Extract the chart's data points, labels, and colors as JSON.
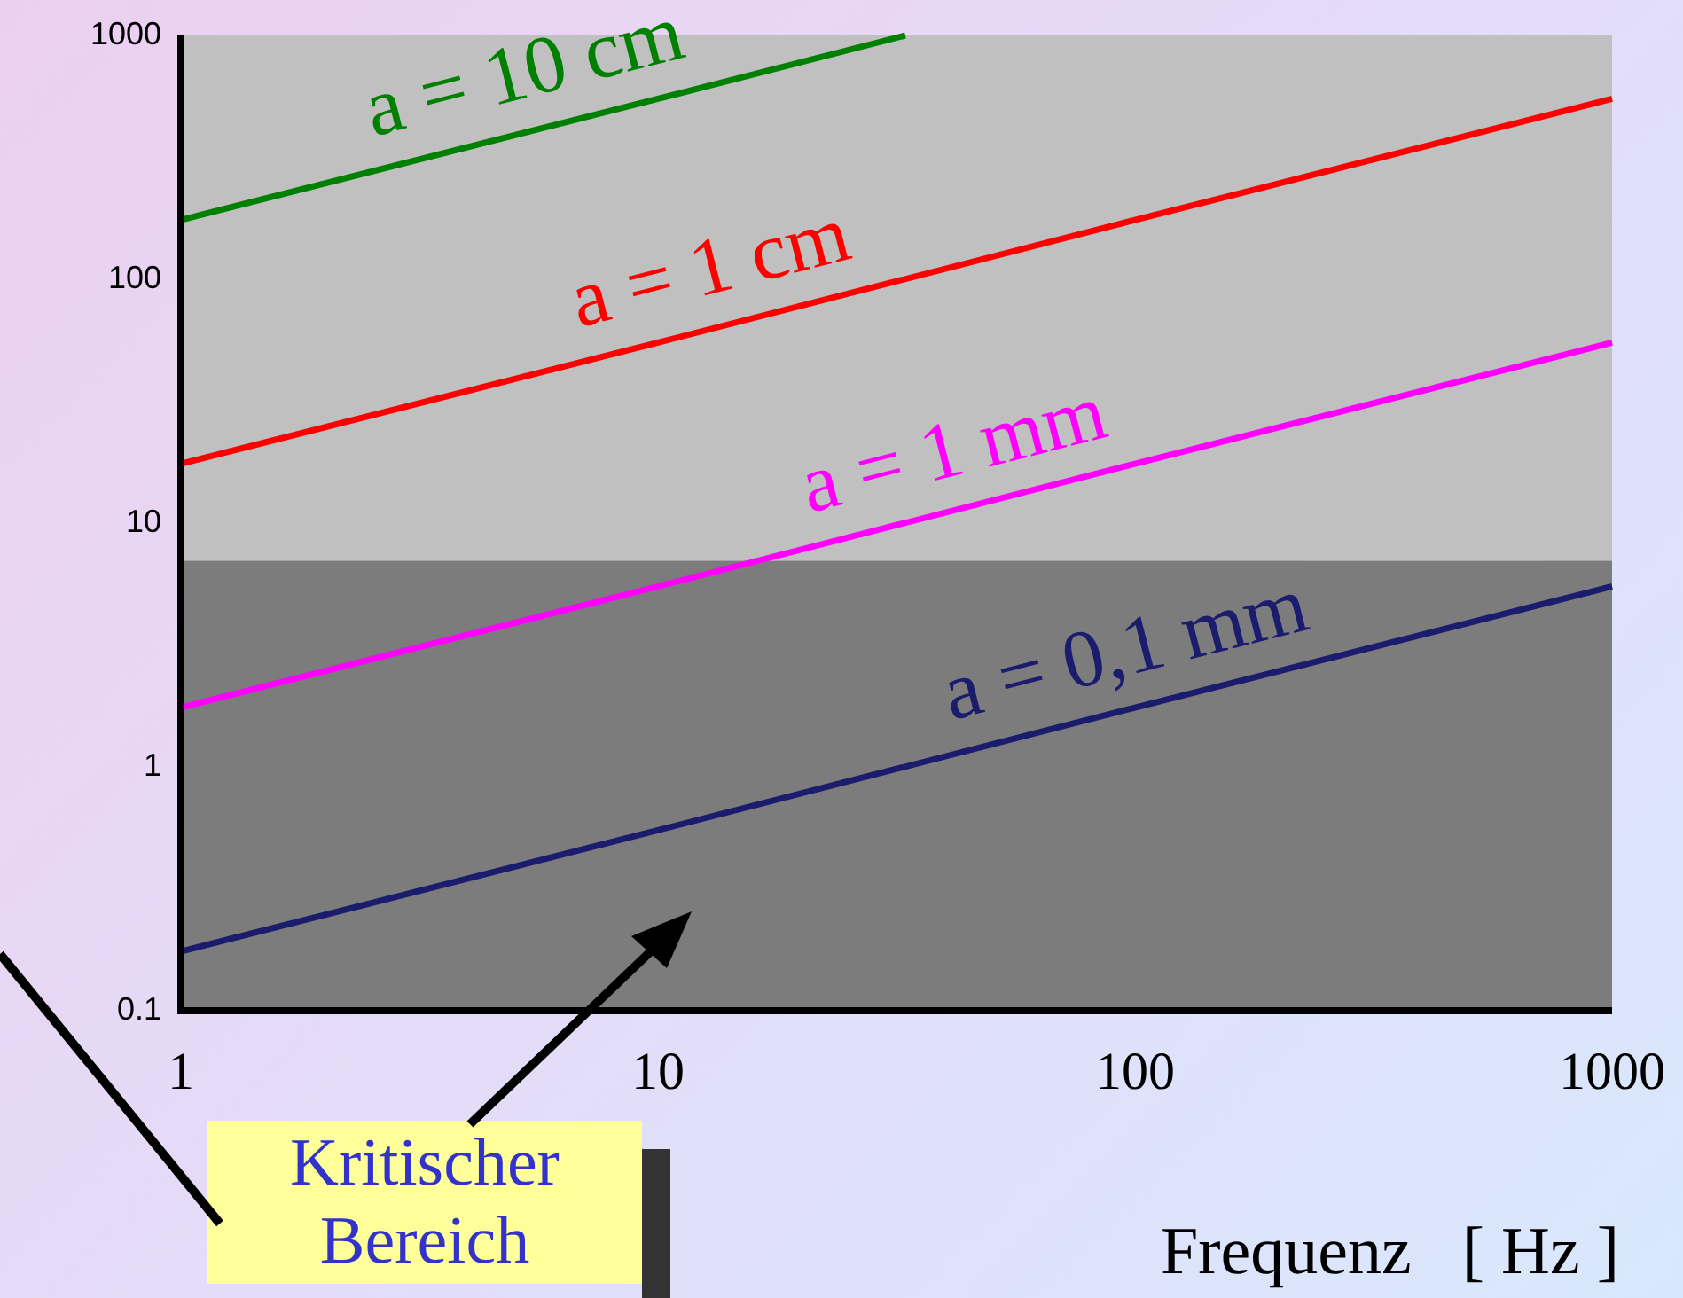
{
  "chart_data": {
    "type": "line",
    "xlabel": "Frequenz   [ Hz ]",
    "log": "xy",
    "grid": false,
    "legend": false,
    "marker": "none",
    "line_style": "solid",
    "xlim": [
      1,
      1000
    ],
    "xticks": [
      1,
      10,
      100,
      1000
    ],
    "ylim": [
      0.1,
      1000
    ],
    "yticks": [
      0.1,
      1,
      10,
      100,
      1000
    ],
    "series": [
      {
        "name": "a = 10 cm",
        "color": "#008000",
        "x": [
          1,
          10,
          33
        ],
        "values": [
          175,
          550,
          1000
        ]
      },
      {
        "name": "a = 1 cm",
        "color": "#ff0000",
        "x": [
          1,
          10,
          100,
          1000
        ],
        "values": [
          17.5,
          55,
          175,
          550
        ]
      },
      {
        "name": "a = 1 mm",
        "color": "#ff00ff",
        "x": [
          1,
          10,
          100,
          1000
        ],
        "values": [
          1.75,
          5.5,
          17.5,
          55
        ]
      },
      {
        "name": "a = 0,1 mm",
        "color": "#1c1c6e",
        "x": [
          1,
          10,
          100,
          1000
        ],
        "values": [
          0.175,
          0.55,
          1.75,
          5.5
        ]
      }
    ],
    "bands": [
      {
        "axis": "y",
        "from": 7,
        "to": 1000,
        "color": "#c0c0c0"
      },
      {
        "axis": "y",
        "from": 0.1,
        "to": 7,
        "color": "#7c7c7c",
        "label": "Kritischer Bereich"
      }
    ]
  }
}
